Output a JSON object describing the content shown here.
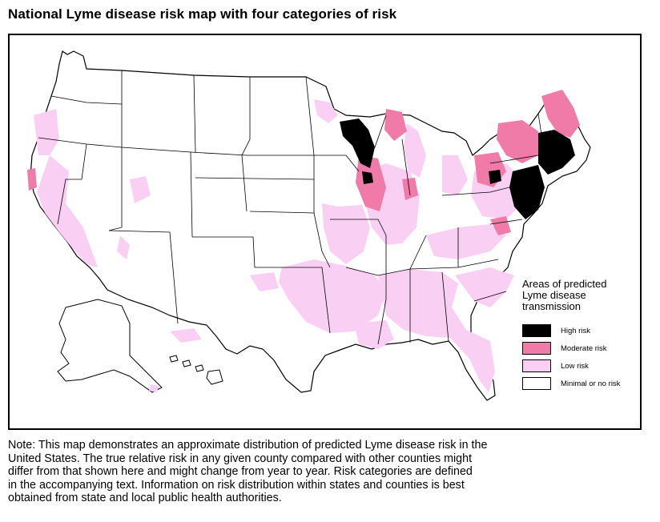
{
  "title": "National Lyme disease risk map with four categories of risk",
  "colors": {
    "high": "#000000",
    "moderate": "#f07aa8",
    "low": "#f9d0f3",
    "minimal": "#ffffff",
    "border": "#000000"
  },
  "legend": {
    "heading_lines": [
      "Areas of predicted",
      "Lyme disease",
      "transmission"
    ],
    "items": [
      {
        "label": "High risk",
        "level": "high"
      },
      {
        "label": "Moderate risk",
        "level": "moderate"
      },
      {
        "label": "Low risk",
        "level": "low"
      },
      {
        "label": "Minimal or no risk",
        "level": "minimal"
      }
    ]
  },
  "note_lines": [
    "Note: This map demonstrates an approximate distribution of predicted Lyme disease risk in the",
    "United States. The true relative risk in any given county compared with other counties might",
    "differ from that shown here and might change from year to year. Risk categories are defined",
    "in the accompanying text. Information on risk distribution within states and counties is best",
    "obtained from state and local public health authorities."
  ]
}
